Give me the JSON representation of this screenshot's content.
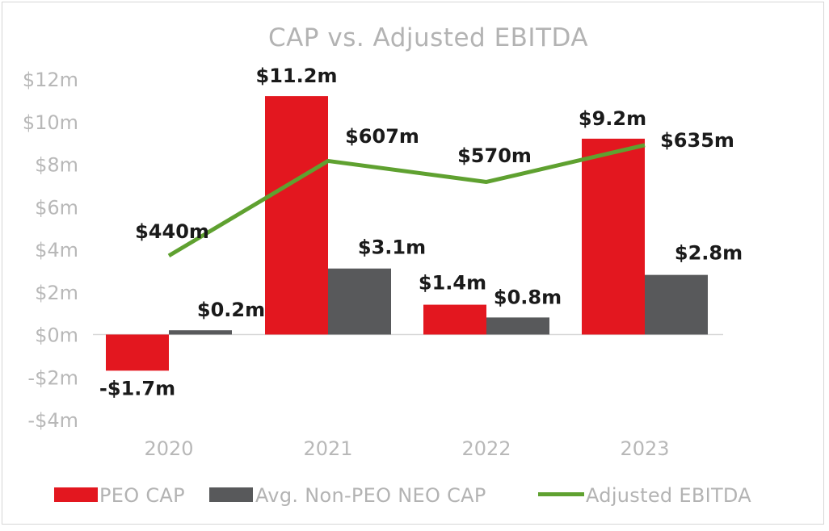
{
  "chart_data": {
    "type": "bar",
    "title": "CAP vs. Adjusted EBITDA",
    "categories": [
      "2020",
      "2021",
      "2022",
      "2023"
    ],
    "ylim": [
      -4,
      12
    ],
    "yticks": [
      {
        "value": 12,
        "label": "$12m"
      },
      {
        "value": 10,
        "label": "$10m"
      },
      {
        "value": 8,
        "label": "$8m"
      },
      {
        "value": 6,
        "label": "$6m"
      },
      {
        "value": 4,
        "label": "$4m"
      },
      {
        "value": 2,
        "label": "$2m"
      },
      {
        "value": 0,
        "label": "$0m"
      },
      {
        "value": -2,
        "label": "-$2m"
      },
      {
        "value": -4,
        "label": "-$4m"
      }
    ],
    "series": [
      {
        "name": "PEO CAP",
        "type": "bar",
        "color": "#e3171f",
        "values": [
          -1.7,
          11.2,
          1.4,
          9.2
        ],
        "labels": [
          "-$1.7m",
          "$11.2m",
          "$1.4m",
          "$9.2m"
        ]
      },
      {
        "name": "Avg. Non-PEO NEO CAP",
        "type": "bar",
        "color": "#58595b",
        "values": [
          0.2,
          3.1,
          0.8,
          2.8
        ],
        "labels": [
          "$0.2m",
          "$3.1m",
          "$0.8m",
          "$2.8m"
        ]
      },
      {
        "name": "Adjusted EBITDA",
        "type": "line",
        "color": "#5fa130",
        "units": "$m",
        "values": [
          440,
          607,
          570,
          635
        ],
        "labels": [
          "$440m",
          "$607m",
          "$570m",
          "$635m"
        ]
      }
    ],
    "grid": false,
    "legend": "bottom"
  }
}
